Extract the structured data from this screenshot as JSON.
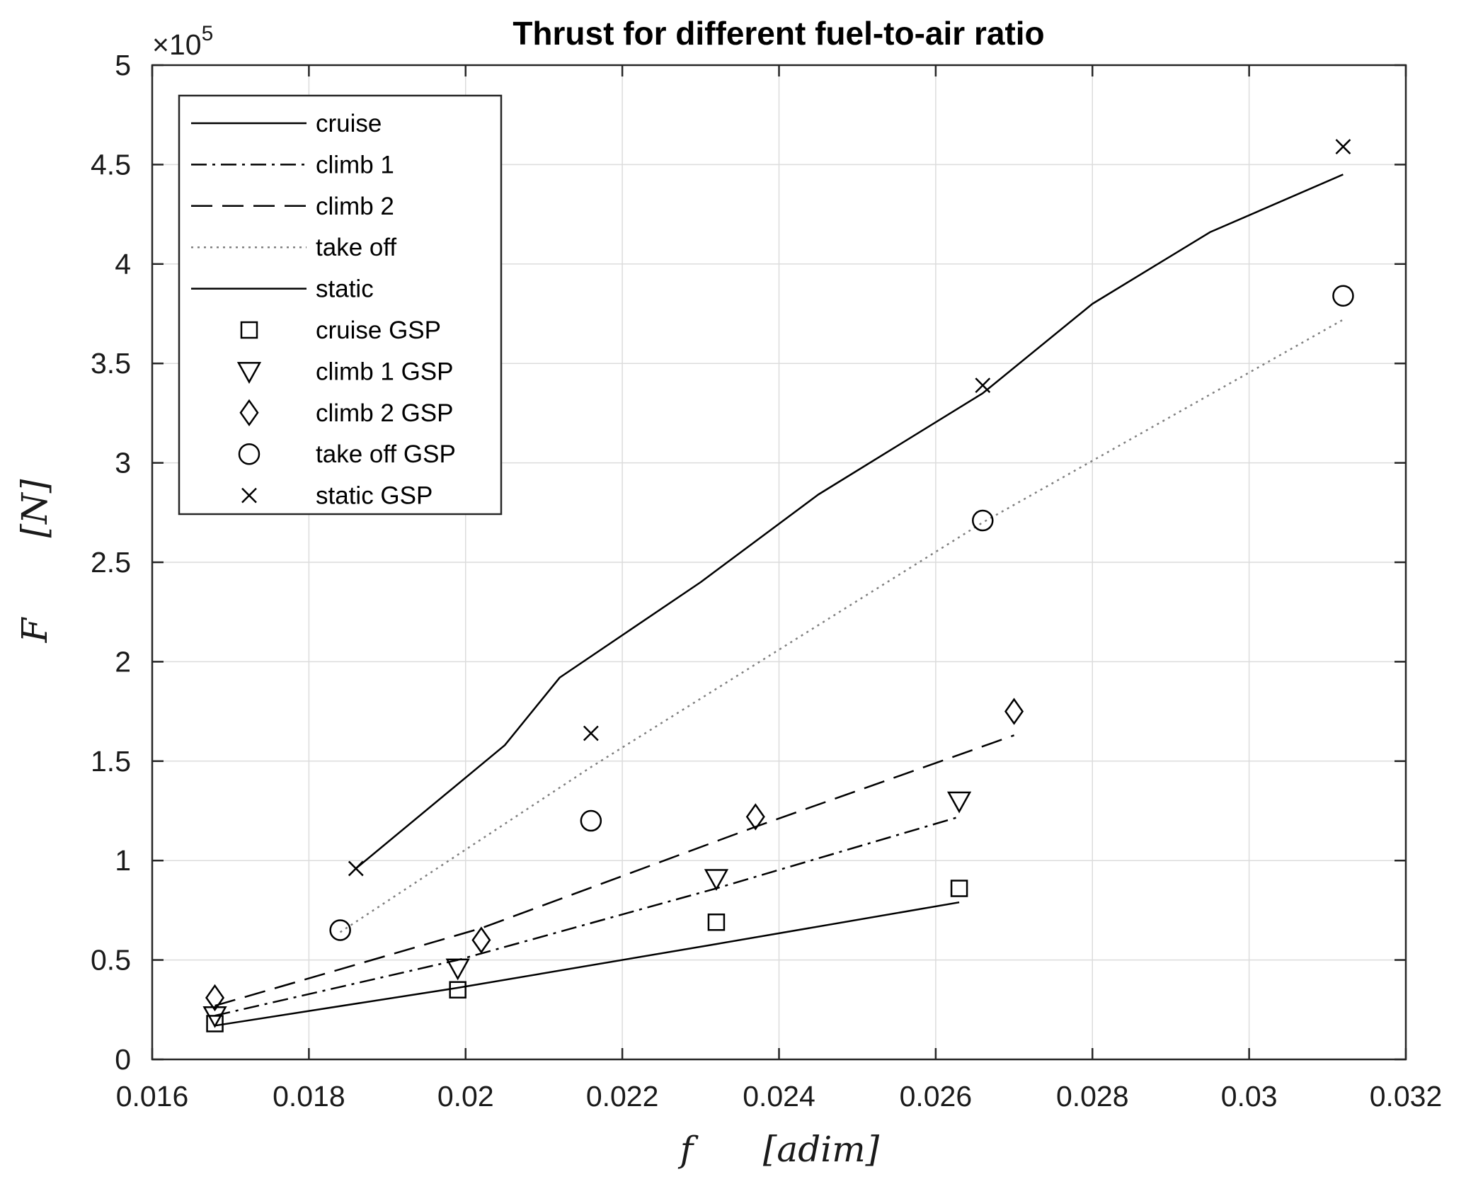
{
  "chart_data": {
    "type": "line",
    "title": "Thrust for different fuel-to-air ratio",
    "xlabel": {
      "symbol": "f",
      "unit": "[adim]"
    },
    "ylabel": {
      "symbol": "F",
      "unit": "[N]"
    },
    "y_exponent_label": {
      "base": "×10",
      "exponent": "5"
    },
    "xlim": [
      0.016,
      0.032
    ],
    "ylim": [
      0,
      5
    ],
    "x_ticks": [
      0.016,
      0.018,
      0.02,
      0.022,
      0.024,
      0.026,
      0.028,
      0.03,
      0.032
    ],
    "x_tick_labels": [
      "0.016",
      "0.018",
      "0.02",
      "0.022",
      "0.024",
      "0.026",
      "0.028",
      "0.03",
      "0.032"
    ],
    "y_ticks": [
      0,
      0.5,
      1,
      1.5,
      2,
      2.5,
      3,
      3.5,
      4,
      4.5,
      5
    ],
    "y_tick_labels": [
      "0",
      "0.5",
      "1",
      "1.5",
      "2",
      "2.5",
      "3",
      "3.5",
      "4",
      "4.5",
      "5"
    ],
    "grid": true,
    "legend_position": "top-left",
    "series": [
      {
        "name": "cruise",
        "style": "solid",
        "color": "#000000",
        "x": [
          0.0168,
          0.0199,
          0.0232,
          0.0263
        ],
        "y": [
          0.17,
          0.36,
          0.58,
          0.79
        ]
      },
      {
        "name": "climb 1",
        "style": "dashdot",
        "color": "#000000",
        "x": [
          0.0168,
          0.0199,
          0.0232,
          0.0263
        ],
        "y": [
          0.22,
          0.5,
          0.86,
          1.22
        ]
      },
      {
        "name": "climb 2",
        "style": "dashed",
        "color": "#000000",
        "x": [
          0.0168,
          0.0202,
          0.0237,
          0.027
        ],
        "y": [
          0.27,
          0.66,
          1.17,
          1.63
        ]
      },
      {
        "name": "take off",
        "style": "dotted",
        "color": "#7f7f7f",
        "x": [
          0.0184,
          0.0216,
          0.0266,
          0.0312
        ],
        "y": [
          0.64,
          1.47,
          2.7,
          3.72
        ]
      },
      {
        "name": "static",
        "style": "solid",
        "color": "#000000",
        "x": [
          0.0186,
          0.0205,
          0.0212,
          0.023,
          0.0245,
          0.0266,
          0.028,
          0.0295,
          0.0312
        ],
        "y": [
          0.96,
          1.58,
          1.92,
          2.4,
          2.84,
          3.35,
          3.8,
          4.16,
          4.45
        ]
      },
      {
        "name": "cruise GSP",
        "marker": "square",
        "color": "#000000",
        "x": [
          0.0168,
          0.0199,
          0.0232,
          0.0263
        ],
        "y": [
          0.18,
          0.35,
          0.69,
          0.86
        ]
      },
      {
        "name": "climb 1 GSP",
        "marker": "triangle-down",
        "color": "#000000",
        "x": [
          0.0168,
          0.0199,
          0.0232,
          0.0263
        ],
        "y": [
          0.22,
          0.46,
          0.91,
          1.3
        ]
      },
      {
        "name": "climb 2 GSP",
        "marker": "diamond",
        "color": "#000000",
        "x": [
          0.0168,
          0.0202,
          0.0237,
          0.027
        ],
        "y": [
          0.31,
          0.6,
          1.22,
          1.75
        ]
      },
      {
        "name": "take off GSP",
        "marker": "circle",
        "color": "#000000",
        "x": [
          0.0184,
          0.0216,
          0.0266,
          0.0312
        ],
        "y": [
          0.65,
          1.2,
          2.71,
          3.84
        ]
      },
      {
        "name": "static GSP",
        "marker": "x",
        "color": "#000000",
        "x": [
          0.0186,
          0.0216,
          0.0266,
          0.0312
        ],
        "y": [
          0.96,
          1.64,
          3.39,
          4.59
        ]
      }
    ]
  }
}
